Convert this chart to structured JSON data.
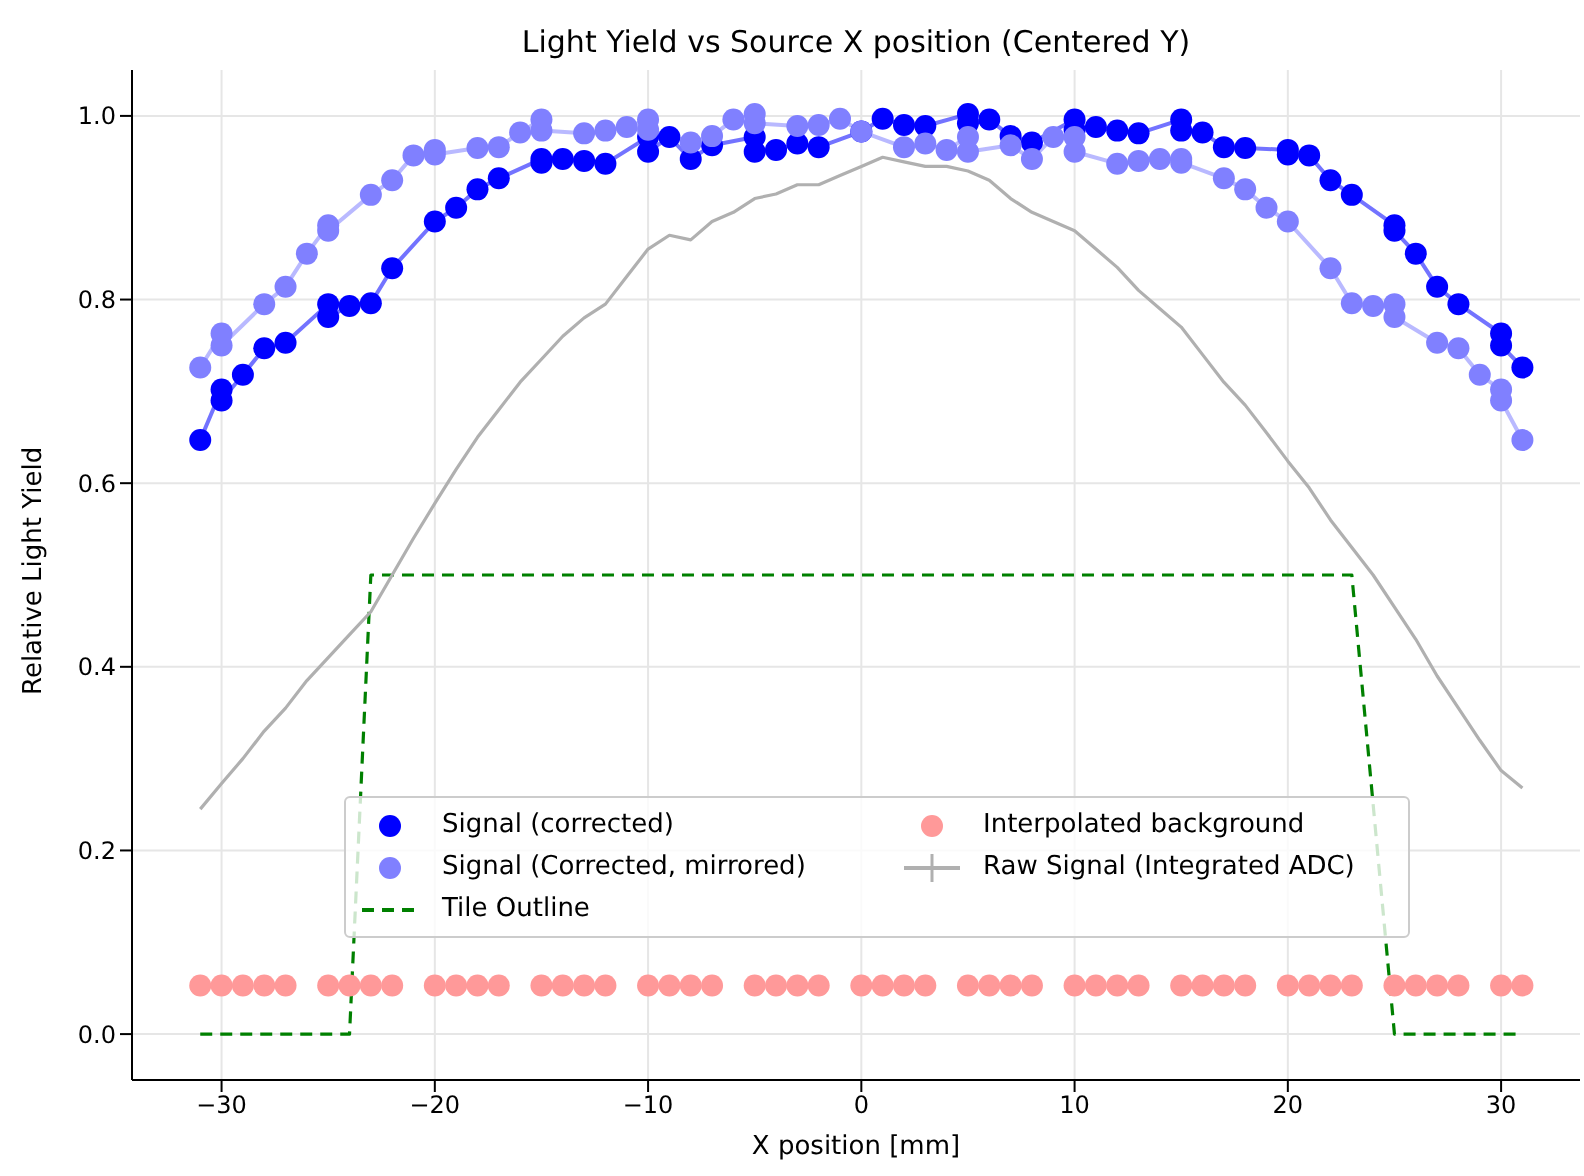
{
  "chart_data": {
    "type": "line",
    "title": "Light Yield vs Source X position (Centered Y)",
    "xlabel": "X position [mm]",
    "ylabel": "Relative Light Yield",
    "xlim": [
      -34.2,
      33.7
    ],
    "ylim": [
      -0.05,
      1.05
    ],
    "xticks": [
      {
        "value": -30,
        "label": "−30"
      },
      {
        "value": -20,
        "label": "−20"
      },
      {
        "value": -10,
        "label": "−10"
      },
      0,
      10,
      20,
      30
    ],
    "yticks": [
      {
        "value": 0,
        "label": "0.0"
      },
      {
        "value": 0.2,
        "label": "0.2"
      },
      {
        "value": 0.4,
        "label": "0.4"
      },
      {
        "value": 0.6,
        "label": "0.6"
      },
      {
        "value": 0.8,
        "label": "0.8"
      },
      {
        "value": 1,
        "label": "1.0"
      }
    ],
    "grid": true,
    "legend": "bottom",
    "series": [
      {
        "name": "Signal (corrected)",
        "marker": "circle",
        "color": "#0000ff",
        "x": [
          -31,
          -30,
          -30,
          -29,
          -28,
          -27,
          -25,
          -25,
          -24,
          -23,
          -22,
          -20,
          -19,
          -18,
          -17,
          -15,
          -15,
          -14,
          -13,
          -12,
          -10,
          -10,
          -9,
          -8,
          -7,
          -5,
          -5,
          -4,
          -3,
          -2,
          0,
          1,
          2,
          3,
          5,
          5,
          6,
          7,
          8,
          10,
          10,
          11,
          12,
          13,
          15,
          15,
          16,
          17,
          18,
          20,
          20,
          21,
          22,
          23,
          25,
          25,
          26,
          27,
          28,
          30,
          30,
          31
        ],
        "values": [
          0.647,
          0.702,
          0.69,
          0.718,
          0.747,
          0.753,
          0.795,
          0.781,
          0.793,
          0.796,
          0.834,
          0.885,
          0.9,
          0.92,
          0.932,
          0.953,
          0.949,
          0.953,
          0.951,
          0.948,
          0.977,
          0.961,
          0.977,
          0.953,
          0.968,
          0.977,
          0.961,
          0.963,
          0.97,
          0.966,
          0.983,
          0.997,
          0.99,
          0.989,
          1.002,
          0.992,
          0.996,
          0.978,
          0.971,
          0.996,
          0.985,
          0.988,
          0.984,
          0.981,
          0.996,
          0.984,
          0.982,
          0.966,
          0.965,
          0.963,
          0.958,
          0.957,
          0.93,
          0.914,
          0.881,
          0.875,
          0.85,
          0.814,
          0.795,
          0.763,
          0.75,
          0.726
        ]
      },
      {
        "name": "Signal (Corrected, mirrored)",
        "marker": "circle",
        "color": "#8080ff",
        "x": [
          -31,
          -30,
          -30,
          -28,
          -27,
          -26,
          -25,
          -25,
          -23,
          -22,
          -21,
          -20,
          -20,
          -18,
          -17,
          -16,
          -15,
          -15,
          -13,
          -12,
          -11,
          -10,
          -10,
          -8,
          -7,
          -6,
          -5,
          -5,
          -3,
          -2,
          -1,
          0,
          2,
          3,
          4,
          5,
          5,
          7,
          8,
          9,
          10,
          10,
          12,
          13,
          14,
          15,
          15,
          17,
          18,
          19,
          20,
          22,
          23,
          24,
          25,
          25,
          27,
          28,
          29,
          30,
          30,
          31
        ],
        "values": [
          0.726,
          0.763,
          0.75,
          0.795,
          0.814,
          0.85,
          0.881,
          0.875,
          0.914,
          0.93,
          0.957,
          0.963,
          0.958,
          0.965,
          0.966,
          0.982,
          0.996,
          0.984,
          0.981,
          0.984,
          0.988,
          0.996,
          0.985,
          0.971,
          0.978,
          0.996,
          1.002,
          0.992,
          0.989,
          0.99,
          0.997,
          0.983,
          0.966,
          0.97,
          0.963,
          0.977,
          0.961,
          0.968,
          0.953,
          0.977,
          0.977,
          0.961,
          0.948,
          0.951,
          0.953,
          0.953,
          0.949,
          0.932,
          0.92,
          0.9,
          0.885,
          0.834,
          0.796,
          0.793,
          0.795,
          0.781,
          0.753,
          0.747,
          0.718,
          0.702,
          0.69,
          0.647
        ]
      },
      {
        "name": "Tile Outline",
        "marker": "none",
        "line_style": "dashed",
        "color": "#008000",
        "x": [
          -31,
          -24,
          -23,
          23,
          25,
          31
        ],
        "values": [
          0,
          0,
          0.5,
          0.5,
          0,
          0
        ]
      },
      {
        "name": "Interpolated background",
        "type": "scatter",
        "marker": "circle",
        "color": "#ff9999",
        "x": [
          -31,
          -30,
          -29,
          -28,
          -27,
          -25,
          -24,
          -23,
          -22,
          -20,
          -19,
          -18,
          -17,
          -15,
          -14,
          -13,
          -12,
          -10,
          -9,
          -8,
          -7,
          -5,
          -4,
          -3,
          -2,
          0,
          1,
          2,
          3,
          5,
          6,
          7,
          8,
          10,
          11,
          12,
          13,
          15,
          16,
          17,
          18,
          20,
          21,
          22,
          23,
          25,
          26,
          27,
          28,
          30,
          31
        ],
        "values": [
          0.053,
          0.053,
          0.053,
          0.053,
          0.053,
          0.053,
          0.053,
          0.053,
          0.053,
          0.053,
          0.053,
          0.053,
          0.053,
          0.053,
          0.053,
          0.053,
          0.053,
          0.053,
          0.053,
          0.053,
          0.053,
          0.053,
          0.053,
          0.053,
          0.053,
          0.053,
          0.053,
          0.053,
          0.053,
          0.053,
          0.053,
          0.053,
          0.053,
          0.053,
          0.053,
          0.053,
          0.053,
          0.053,
          0.053,
          0.053,
          0.053,
          0.053,
          0.053,
          0.053,
          0.053,
          0.053,
          0.053,
          0.053,
          0.053,
          0.053,
          0.053
        ]
      },
      {
        "name": "Raw Signal (Integrated ADC)",
        "marker": "none",
        "color": "#b0b0b0",
        "x": [
          -31,
          -30,
          -29,
          -28,
          -27,
          -26,
          -25,
          -24,
          -23,
          -22,
          -21,
          -20,
          -19,
          -18,
          -17,
          -16,
          -15,
          -14,
          -13,
          -12,
          -11,
          -10,
          -9,
          -8,
          -7,
          -6,
          -5,
          -4,
          -3,
          -2,
          -1,
          0,
          1,
          2,
          3,
          4,
          5,
          6,
          7,
          8,
          9,
          10,
          11,
          12,
          13,
          14,
          15,
          16,
          17,
          18,
          19,
          20,
          21,
          22,
          23,
          24,
          25,
          26,
          27,
          28,
          29,
          30,
          31
        ],
        "values": [
          0.245,
          0.273,
          0.3,
          0.33,
          0.355,
          0.385,
          0.41,
          0.435,
          0.46,
          0.5,
          0.54,
          0.578,
          0.615,
          0.65,
          0.68,
          0.71,
          0.735,
          0.76,
          0.78,
          0.795,
          0.825,
          0.855,
          0.87,
          0.865,
          0.885,
          0.895,
          0.91,
          0.915,
          0.925,
          0.925,
          0.935,
          0.945,
          0.955,
          0.95,
          0.945,
          0.945,
          0.94,
          0.93,
          0.91,
          0.895,
          0.885,
          0.875,
          0.855,
          0.835,
          0.81,
          0.79,
          0.77,
          0.74,
          0.71,
          0.685,
          0.655,
          0.624,
          0.595,
          0.56,
          0.53,
          0.5,
          0.465,
          0.43,
          0.39,
          0.355,
          0.32,
          0.287,
          0.268
        ]
      }
    ]
  }
}
